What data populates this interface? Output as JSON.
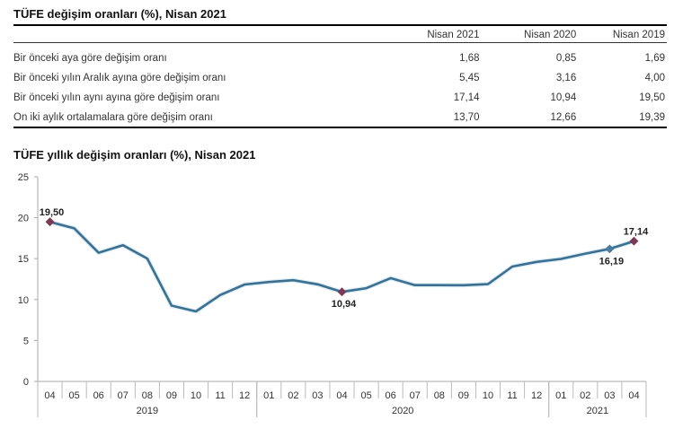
{
  "table": {
    "title": "TÜFE değişim oranları (%), Nisan 2021",
    "columns": [
      "Nisan 2021",
      "Nisan 2020",
      "Nisan 2019"
    ],
    "rows": [
      {
        "label": "Bir önceki aya göre değişim oranı",
        "values": [
          "1,68",
          "0,85",
          "1,69"
        ]
      },
      {
        "label": "Bir önceki yılın Aralık ayına göre değişim oranı",
        "values": [
          "5,45",
          "3,16",
          "4,00"
        ]
      },
      {
        "label": "Bir önceki yılın aynı ayına göre değişim oranı",
        "values": [
          "17,14",
          "10,94",
          "19,50"
        ]
      },
      {
        "label": "On iki aylık ortalamalara göre değişim oranı",
        "values": [
          "13,70",
          "12,66",
          "19,39"
        ]
      }
    ]
  },
  "chart_data": {
    "type": "line",
    "title": "TÜFE yıllık değişim oranları (%), Nisan 2021",
    "xlabel": "",
    "ylabel": "",
    "ylim": [
      0,
      25
    ],
    "yticks": [
      "0",
      "5",
      "10",
      "15",
      "20",
      "25"
    ],
    "grid": false,
    "legend": null,
    "categories": [
      "04",
      "05",
      "06",
      "07",
      "08",
      "09",
      "10",
      "11",
      "12",
      "01",
      "02",
      "03",
      "04",
      "05",
      "06",
      "07",
      "08",
      "09",
      "10",
      "11",
      "12",
      "01",
      "02",
      "03",
      "04"
    ],
    "year_groups": [
      {
        "label": "2019",
        "start": 0,
        "count": 9
      },
      {
        "label": "2020",
        "start": 9,
        "count": 12
      },
      {
        "label": "2021",
        "start": 21,
        "count": 4
      }
    ],
    "series": [
      {
        "name": "TÜFE yıllık değişim",
        "color": "#3f6f8f",
        "values": [
          19.5,
          18.71,
          15.72,
          16.65,
          15.01,
          9.26,
          8.55,
          10.56,
          11.84,
          12.15,
          12.37,
          11.86,
          10.94,
          11.39,
          12.62,
          11.76,
          11.77,
          11.75,
          11.89,
          14.03,
          14.6,
          14.97,
          15.61,
          16.19,
          17.14
        ]
      }
    ],
    "annotations": [
      {
        "index": 0,
        "text": "19,50",
        "marker_color": "#7a3a55",
        "position": "above"
      },
      {
        "index": 12,
        "text": "10,94",
        "marker_color": "#7a3a55",
        "position": "below"
      },
      {
        "index": 23,
        "text": "16,19",
        "marker_color": "#4a7ca0",
        "position": "below"
      },
      {
        "index": 24,
        "text": "17,14",
        "marker_color": "#7a3a55",
        "position": "above"
      }
    ]
  }
}
